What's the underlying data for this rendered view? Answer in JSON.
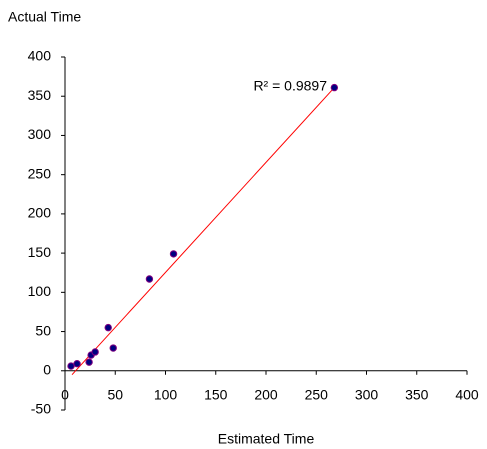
{
  "chart_data": {
    "type": "scatter",
    "y_label": "Actual Time",
    "x_label": "Estimated Time",
    "series": [
      {
        "x": [
          6,
          12,
          24,
          26,
          30,
          43,
          48,
          84,
          108,
          268
        ],
        "values": [
          6,
          9,
          11,
          20,
          24,
          55,
          29,
          117,
          149,
          361
        ],
        "color": "#000080",
        "edge_color": "#800080"
      }
    ],
    "trendline": {
      "x": [
        7,
        268
      ],
      "values": [
        -5,
        361
      ],
      "color": "#ff0000"
    },
    "annotation": "R² = 0.9897",
    "annotation_color": "#ff0000",
    "xlim": [
      0,
      400
    ],
    "xticks": [
      0,
      50,
      100,
      150,
      200,
      250,
      300,
      350,
      400
    ],
    "ylim": [
      -50,
      400
    ],
    "yticks": [
      -50,
      0,
      50,
      100,
      150,
      200,
      250,
      300,
      350,
      400
    ],
    "grid": false
  }
}
